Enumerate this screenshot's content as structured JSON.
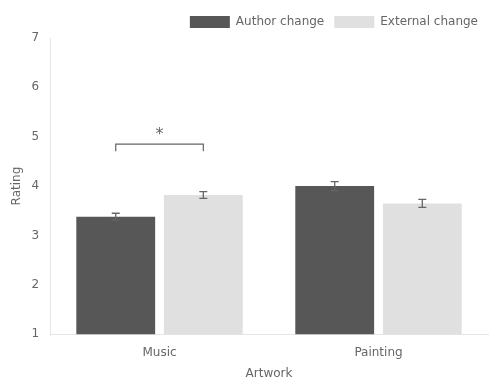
{
  "chart_data": {
    "type": "bar",
    "categories": [
      "Music",
      "Painting"
    ],
    "series": [
      {
        "name": "Author change",
        "color": "#575757",
        "values": [
          3.38,
          4.0
        ],
        "errors": [
          0.07,
          0.09
        ]
      },
      {
        "name": "External change",
        "color": "#e0e0e0",
        "values": [
          3.82,
          3.65
        ],
        "errors": [
          0.07,
          0.08
        ]
      }
    ],
    "xlabel": "Artwork",
    "ylabel": "Rating",
    "ylim": [
      1,
      7
    ],
    "yticks": [
      1,
      2,
      3,
      4,
      5,
      6,
      7
    ],
    "grid": false,
    "legend": "upper right",
    "annotations": [
      {
        "text": "*",
        "x": "Music",
        "y": 4.85
      }
    ]
  }
}
